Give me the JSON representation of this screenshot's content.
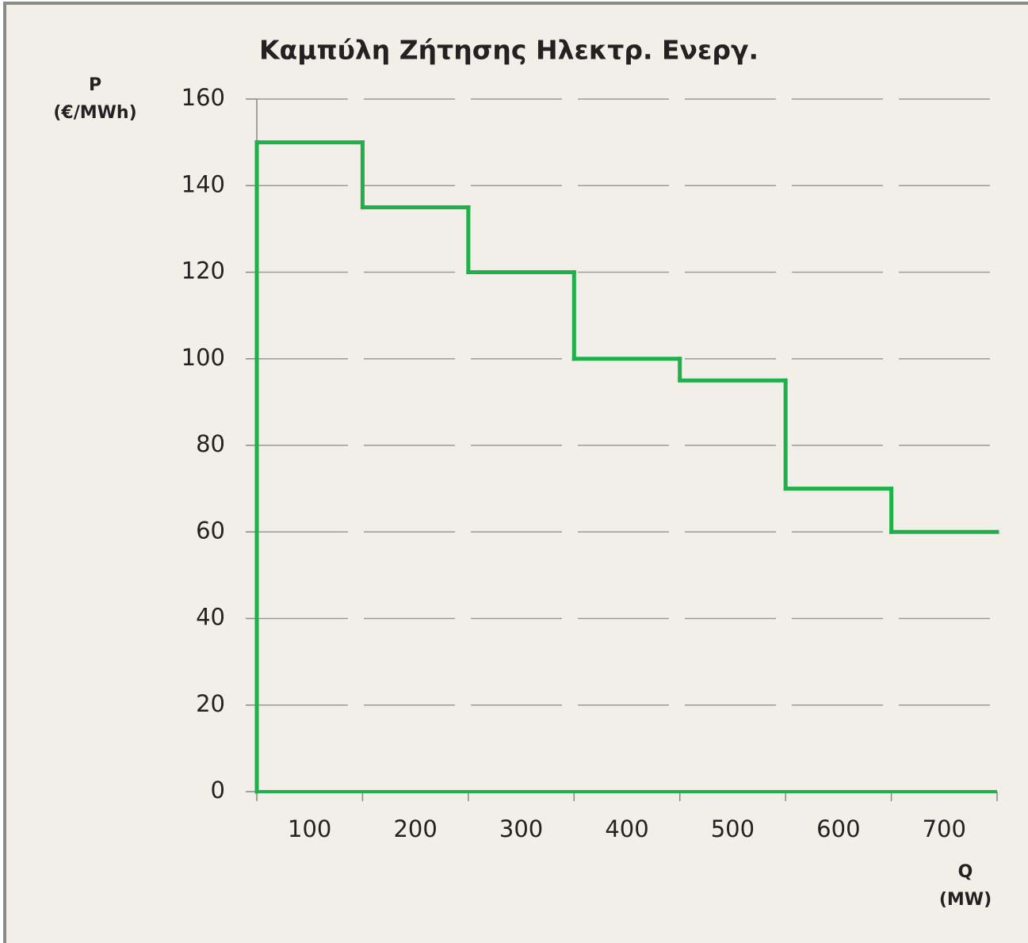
{
  "chart_data": {
    "type": "step",
    "title": "Καμπύλη Ζήτησης Ηλεκτρ. Ενεργ.",
    "ylabel": [
      "P",
      "(€/MWh)"
    ],
    "xlabel": [
      "Q",
      "(MW)"
    ],
    "categories": [
      "100",
      "200",
      "300",
      "400",
      "500",
      "600",
      "700"
    ],
    "values": [
      150,
      135,
      120,
      100,
      95,
      70,
      60
    ],
    "color": "#1fb04a",
    "ylim": [
      0,
      160
    ],
    "yticks": [
      0,
      20,
      40,
      60,
      80,
      100,
      120,
      140,
      160
    ],
    "grid": true
  }
}
